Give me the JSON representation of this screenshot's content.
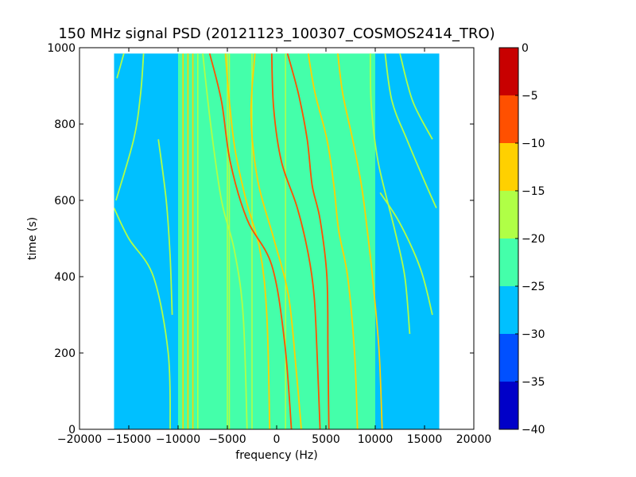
{
  "chart_data": {
    "type": "heatmap",
    "title": "150 MHz signal PSD (20121123_100307_COSMOS2414_TRO)",
    "xlabel": "frequency (Hz)",
    "ylabel": "time (s)",
    "xlim": [
      -20000,
      20000
    ],
    "ylim": [
      0,
      1000
    ],
    "x_ticks": [
      -20000,
      -15000,
      -10000,
      -5000,
      0,
      5000,
      10000,
      15000,
      20000
    ],
    "x_tick_labels": [
      "−20000",
      "−15000",
      "−10000",
      "−5000",
      "0",
      "5000",
      "10000",
      "15000",
      "20000"
    ],
    "y_ticks": [
      0,
      200,
      400,
      600,
      800,
      1000
    ],
    "y_tick_labels": [
      "0",
      "200",
      "400",
      "600",
      "800",
      "1000"
    ],
    "data_extent": {
      "freq_range": [
        -16500,
        16500
      ],
      "time_range": [
        0,
        985
      ]
    },
    "regions": [
      {
        "freq": [
          -16500,
          -10000
        ],
        "level": -27.5
      },
      {
        "freq": [
          -10000,
          10000
        ],
        "level": -22.5
      },
      {
        "freq": [
          10000,
          16500
        ],
        "level": -27.5
      }
    ],
    "colorbar": {
      "range": [
        -40,
        0
      ],
      "ticks": [
        0,
        -5,
        -10,
        -15,
        -20,
        -25,
        -30,
        -35,
        -40
      ],
      "tick_labels": [
        "0",
        "−5",
        "−10",
        "−15",
        "−20",
        "−25",
        "−30",
        "−35",
        "−40"
      ],
      "levels": [
        {
          "from": -40,
          "to": -35,
          "color": "#0000c8"
        },
        {
          "from": -35,
          "to": -30,
          "color": "#0050ff"
        },
        {
          "from": -30,
          "to": -25,
          "color": "#00c0ff"
        },
        {
          "from": -25,
          "to": -20,
          "color": "#44ffaa"
        },
        {
          "from": -20,
          "to": -15,
          "color": "#b0ff46"
        },
        {
          "from": -15,
          "to": -10,
          "color": "#ffd000"
        },
        {
          "from": -10,
          "to": -5,
          "color": "#ff5000"
        },
        {
          "from": -5,
          "to": 0,
          "color": "#c80000"
        }
      ]
    },
    "vertical_lines": [
      {
        "freq": -9500,
        "level": -12
      },
      {
        "freq": -9000,
        "level": -12
      },
      {
        "freq": -8500,
        "level": -12
      },
      {
        "freq": -8000,
        "level": -17
      },
      {
        "freq": -5000,
        "level": -17
      },
      {
        "freq": -4800,
        "level": -17
      },
      {
        "freq": -2500,
        "level": -17
      },
      {
        "freq": 900,
        "level": -17
      }
    ],
    "series": [
      {
        "level": -17,
        "points": [
          [
            -15500,
            985
          ],
          [
            -16200,
            920
          ]
        ]
      },
      {
        "level": -17,
        "points": [
          [
            -13500,
            985
          ],
          [
            -13800,
            880
          ],
          [
            -14500,
            760
          ],
          [
            -16300,
            600
          ]
        ]
      },
      {
        "level": -17,
        "points": [
          [
            -16500,
            580
          ],
          [
            -15000,
            500
          ],
          [
            -12500,
            400
          ],
          [
            -11000,
            200
          ],
          [
            -10800,
            0
          ]
        ]
      },
      {
        "level": -17,
        "points": [
          [
            -12000,
            760
          ],
          [
            -11200,
            600
          ],
          [
            -10800,
            450
          ],
          [
            -10600,
            300
          ]
        ]
      },
      {
        "level": -17,
        "points": [
          [
            -7500,
            985
          ],
          [
            -6700,
            800
          ],
          [
            -5600,
            600
          ],
          [
            -4300,
            470
          ],
          [
            -3400,
            300
          ],
          [
            -3000,
            0
          ]
        ]
      },
      {
        "level": -12,
        "points": [
          [
            -5200,
            985
          ],
          [
            -4800,
            860
          ],
          [
            -4200,
            730
          ],
          [
            -3100,
            600
          ],
          [
            -1700,
            470
          ],
          [
            -1000,
            300
          ],
          [
            -700,
            0
          ]
        ]
      },
      {
        "level": -7,
        "points": [
          [
            -6800,
            985
          ],
          [
            -5600,
            860
          ],
          [
            -4700,
            700
          ],
          [
            -3000,
            550
          ],
          [
            -500,
            430
          ],
          [
            800,
            230
          ],
          [
            1500,
            0
          ]
        ]
      },
      {
        "level": -12,
        "points": [
          [
            -2200,
            985
          ],
          [
            -2600,
            820
          ],
          [
            -1900,
            650
          ],
          [
            -300,
            500
          ],
          [
            1200,
            350
          ],
          [
            2000,
            150
          ],
          [
            2500,
            0
          ]
        ]
      },
      {
        "level": -7,
        "points": [
          [
            -500,
            985
          ],
          [
            -300,
            840
          ],
          [
            500,
            700
          ],
          [
            2100,
            580
          ],
          [
            3200,
            460
          ],
          [
            3800,
            350
          ],
          [
            4100,
            200
          ],
          [
            4400,
            0
          ]
        ]
      },
      {
        "level": -7,
        "points": [
          [
            1100,
            985
          ],
          [
            2200,
            880
          ],
          [
            3100,
            760
          ],
          [
            3600,
            640
          ],
          [
            4400,
            550
          ],
          [
            5100,
            400
          ],
          [
            5200,
            200
          ],
          [
            5300,
            0
          ]
        ]
      },
      {
        "level": -12,
        "points": [
          [
            3200,
            985
          ],
          [
            3900,
            880
          ],
          [
            5100,
            760
          ],
          [
            5800,
            640
          ],
          [
            6300,
            520
          ],
          [
            7200,
            400
          ],
          [
            7900,
            200
          ],
          [
            8200,
            0
          ]
        ]
      },
      {
        "level": -12,
        "points": [
          [
            6200,
            985
          ],
          [
            6700,
            880
          ],
          [
            7700,
            760
          ],
          [
            8600,
            640
          ],
          [
            9200,
            520
          ],
          [
            9800,
            380
          ],
          [
            10400,
            200
          ],
          [
            10700,
            0
          ]
        ]
      },
      {
        "level": -17,
        "points": [
          [
            9500,
            985
          ],
          [
            9600,
            850
          ],
          [
            10300,
            700
          ],
          [
            12000,
            520
          ],
          [
            13000,
            400
          ],
          [
            13500,
            250
          ]
        ]
      },
      {
        "level": -17,
        "points": [
          [
            11000,
            985
          ],
          [
            11700,
            860
          ],
          [
            13200,
            760
          ],
          [
            15000,
            650
          ],
          [
            16200,
            580
          ]
        ]
      },
      {
        "level": -17,
        "points": [
          [
            10500,
            620
          ],
          [
            12500,
            540
          ],
          [
            14600,
            420
          ],
          [
            15800,
            300
          ]
        ]
      },
      {
        "level": -17,
        "points": [
          [
            12500,
            985
          ],
          [
            13800,
            860
          ],
          [
            15800,
            760
          ]
        ]
      }
    ]
  }
}
